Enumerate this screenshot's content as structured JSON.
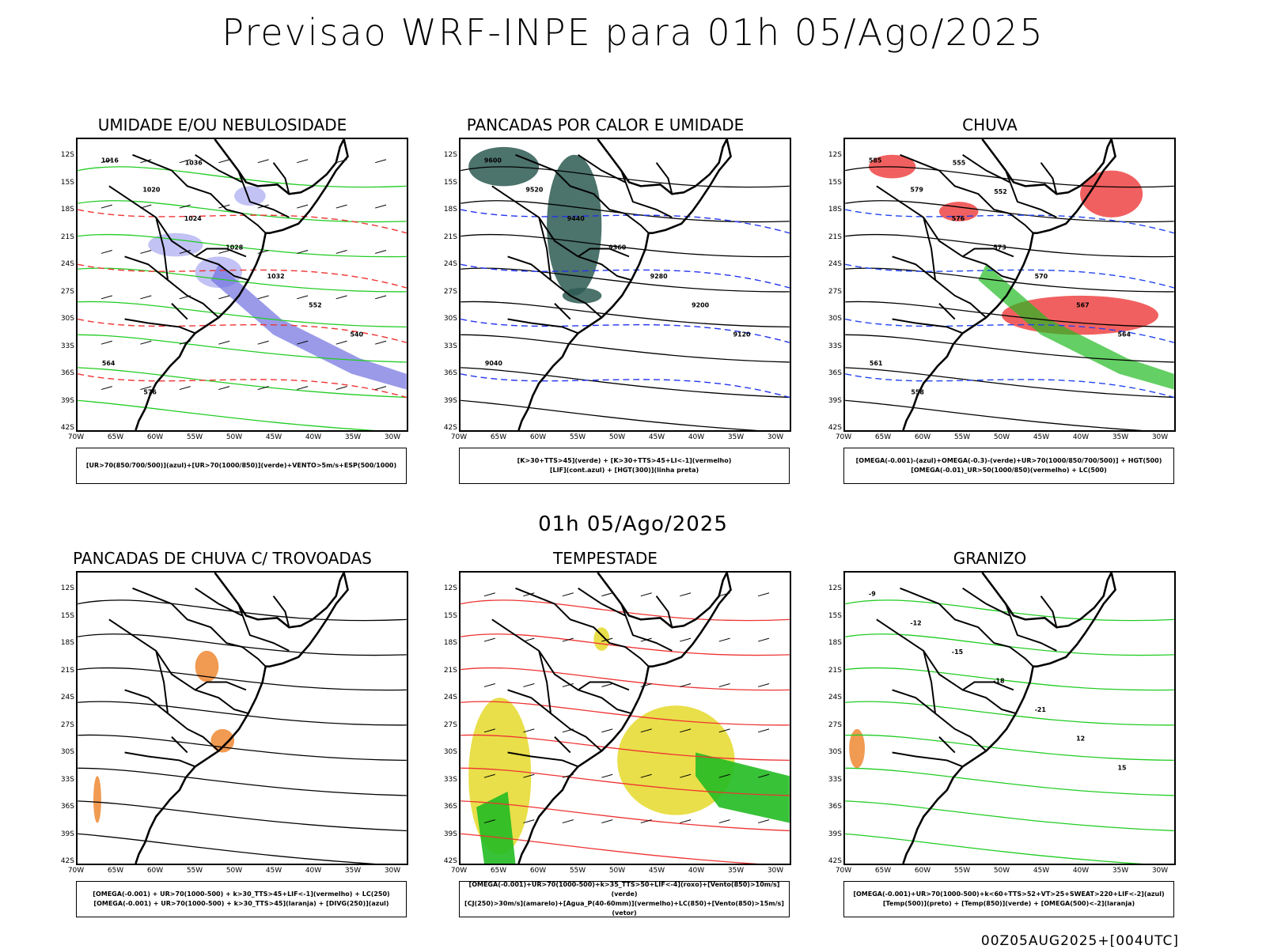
{
  "page": {
    "title": "Previsao WRF-INPE  para 01h 05/Ago/2025",
    "mid_title": "01h 05/Ago/2025",
    "footer": "00Z05AUG2025+[004UTC]"
  },
  "axes": {
    "lat_labels": [
      "12S",
      "15S",
      "18S",
      "21S",
      "24S",
      "27S",
      "30S",
      "33S",
      "36S",
      "39S",
      "42S"
    ],
    "lon_labels": [
      "70W",
      "65W",
      "60W",
      "55W",
      "50W",
      "45W",
      "40W",
      "35W",
      "30W"
    ]
  },
  "panels": [
    {
      "title": "UMIDADE E/OU NEBULOSIDADE",
      "legend": [
        "[UR>70(850/700/500)](azul)+[UR>70(1000/850)](verde)+VENTO>5m/s+ESP(500/1000)"
      ],
      "colors": {
        "fill": "#b7b7f2",
        "fill2": "#6f6fe0",
        "line": "#22cc22",
        "dash": "#ee3333"
      },
      "contour_labels": [
        "1016",
        "1020",
        "1024",
        "1028",
        "1032",
        "552",
        "540",
        "564",
        "576",
        "1036"
      ]
    },
    {
      "title": "PANCADAS POR CALOR E UMIDADE",
      "legend": [
        "[K>30+TTS>45](verde) + [K>30+TTS>45+LI<-1](vermelho)",
        "[LIF](cont.azul) + [HGT(300)](linha preta)"
      ],
      "colors": {
        "fill": "#2d5a52",
        "fill2": "#ef4444",
        "line": "#000000",
        "dash": "#2233ee"
      },
      "contour_labels": [
        "9600",
        "9520",
        "9440",
        "9360",
        "9280",
        "9200",
        "9120",
        "9040"
      ]
    },
    {
      "title": "CHUVA",
      "legend": [
        "[OMEGA(-0.001)-(azul)+OMEGA(-0.3)-(verde)+UR>70(1000/850/700/500)] + HGT(500)",
        "[OMEGA(-0.01)_UR>50(1000/850)(vermelho) + LC(500)"
      ],
      "colors": {
        "fill": "#ef4444",
        "fill2": "#22bb22",
        "line": "#000000",
        "dash": "#2244ee"
      },
      "contour_labels": [
        "585",
        "579",
        "576",
        "573",
        "570",
        "567",
        "564",
        "561",
        "558",
        "555",
        "552"
      ]
    },
    {
      "title": "PANCADAS DE CHUVA C/ TROVOADAS",
      "legend": [
        "[OMEGA(-0.001) + UR>70(1000-500) + k>30_TTS>45+LIF<-1](vermelho) + LC(250)",
        "[OMEGA(-0.001) + UR>70(1000-500) + k>30_TTS>45](laranja) + [DIVG(250)](azul)"
      ],
      "colors": {
        "fill": "#ee8833",
        "fill2": "#2244ee",
        "line": "#000000",
        "dash": "#000000"
      },
      "contour_labels": []
    },
    {
      "title": "TEMPESTADE",
      "legend": [
        "[OMEGA(-0.001)+UR>70(1000-500)+k>35_TTS>50+LIF<-4](roxo)+[Vento(850)>10m/s](verde)",
        "[CJ(250)>30m/s](amarelo)+[Agua_P(40-60mm)](vermelho)+LC(850)+[Vento(850)>15m/s](vetor)"
      ],
      "colors": {
        "fill": "#e5d92a",
        "fill2": "#22bb22",
        "line": "#ee3333",
        "dash": "#000000"
      },
      "contour_labels": []
    },
    {
      "title": "GRANIZO",
      "legend": [
        "[OMEGA(-0.001)+UR>70(1000-500)+k<60+TTS>52+VT>25+SWEAT>220+LIF<-2](azul)",
        "[Temp(500)](preto) + [Temp(850)](verde) + [OMEGA(500)<-2](laranja)"
      ],
      "colors": {
        "fill": "#ee8833",
        "fill2": "#22cc22",
        "line": "#22cc22",
        "dash": "#000000"
      },
      "contour_labels": [
        "-9",
        "-12",
        "-15",
        "-18",
        "-21",
        "12",
        "15"
      ]
    }
  ]
}
